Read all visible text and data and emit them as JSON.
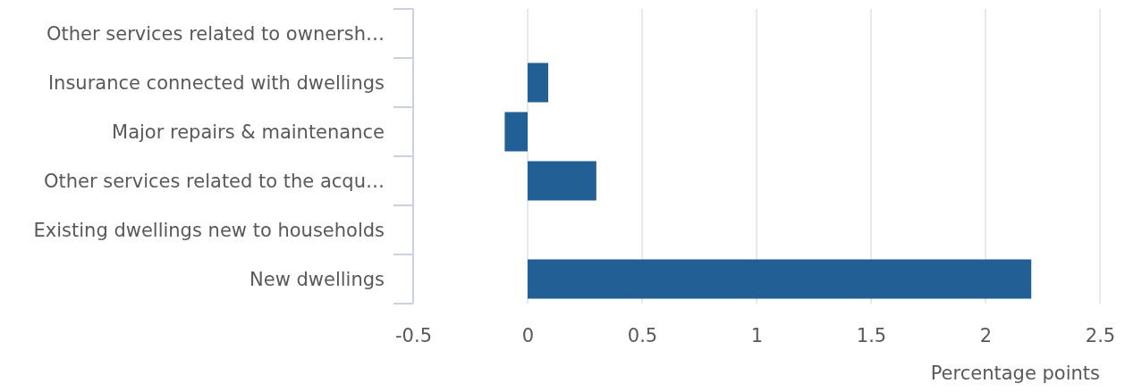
{
  "chart_data": {
    "type": "bar",
    "orientation": "horizontal",
    "xlabel": "Percentage points",
    "categories": [
      "Other services related to ownersh…",
      "Insurance connected with dwellings",
      "Major repairs & maintenance",
      "Other services related to the acqu…",
      "Existing dwellings new to households",
      "New dwellings"
    ],
    "values": [
      0,
      0.09,
      -0.1,
      0.3,
      0,
      2.2
    ],
    "color": "#215f94",
    "xlim": [
      -0.5,
      2.5
    ],
    "xticks": [
      -0.5,
      0,
      0.5,
      1,
      1.5,
      2,
      2.5
    ],
    "grid": "x"
  }
}
